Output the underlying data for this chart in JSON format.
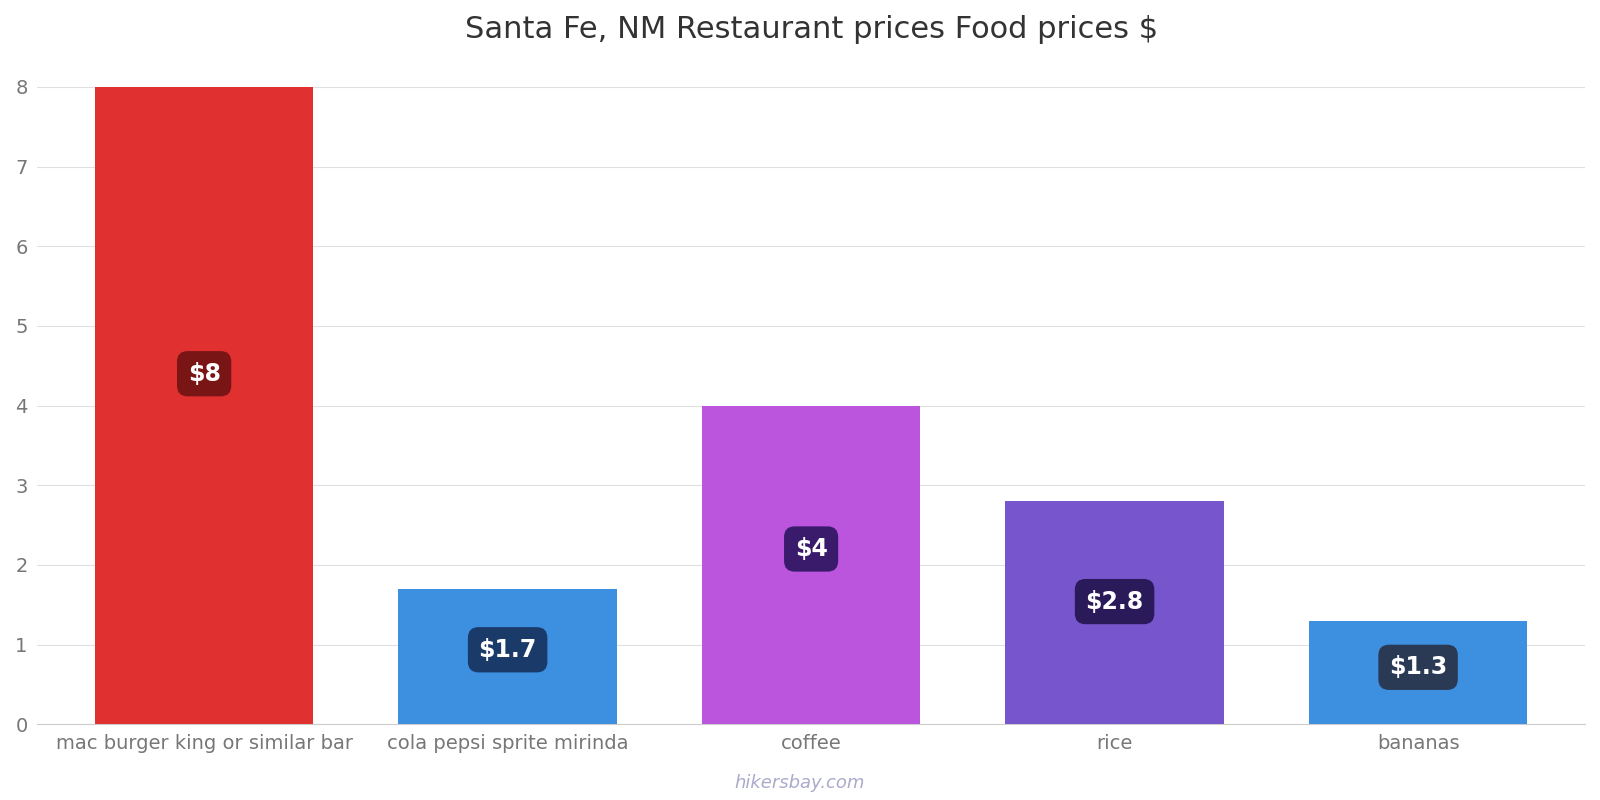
{
  "title": "Santa Fe, NM Restaurant prices Food prices $",
  "categories": [
    "mac burger king or similar bar",
    "cola pepsi sprite mirinda",
    "coffee",
    "rice",
    "bananas"
  ],
  "values": [
    8,
    1.7,
    4,
    2.8,
    1.3
  ],
  "labels": [
    "$8",
    "$1.7",
    "$4",
    "$2.8",
    "$1.3"
  ],
  "bar_colors": [
    "#e03030",
    "#3d8fe0",
    "#bb55dd",
    "#7755cc",
    "#3d8fe0"
  ],
  "label_box_colors": [
    "#7a1515",
    "#1a3a6a",
    "#3a1a6a",
    "#2a1a5a",
    "#2a3a55"
  ],
  "ylim": [
    0,
    8.3
  ],
  "yticks": [
    0,
    1,
    2,
    3,
    4,
    5,
    6,
    7,
    8
  ],
  "background_color": "#ffffff",
  "title_fontsize": 22,
  "tick_fontsize": 14,
  "label_fontsize": 17,
  "watermark": "hikersbay.com",
  "bar_width": 0.72
}
